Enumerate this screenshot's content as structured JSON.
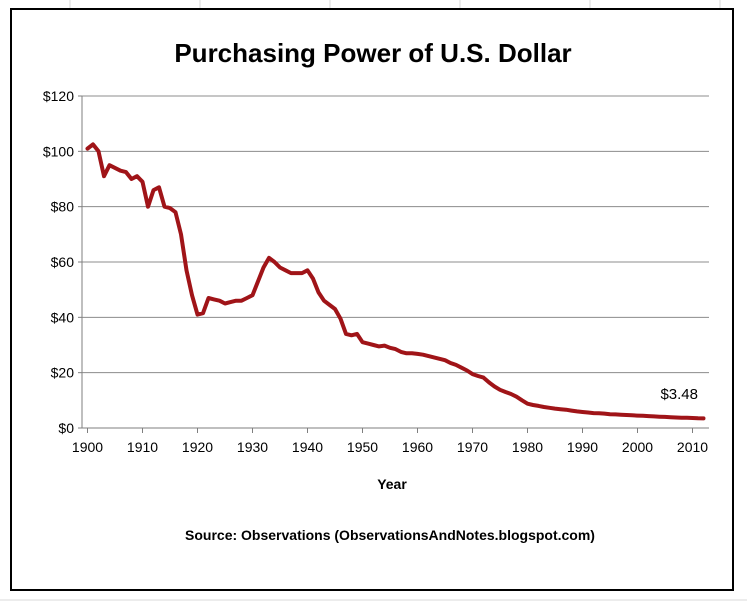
{
  "chart_data": {
    "type": "line",
    "title": "Purchasing Power of U.S. Dollar",
    "xlabel": "Year",
    "ylabel": "",
    "source_note": "Source: Observations (ObservationsAndNotes.blogspot.com)",
    "xlim": [
      1899,
      2013
    ],
    "ylim": [
      0,
      120
    ],
    "x_ticks": [
      1900,
      1910,
      1920,
      1930,
      1940,
      1950,
      1960,
      1970,
      1980,
      1990,
      2000,
      2010
    ],
    "y_ticks": [
      0,
      20,
      40,
      60,
      80,
      100,
      120
    ],
    "y_tick_labels": [
      "$0",
      "$20",
      "$40",
      "$60",
      "$80",
      "$100",
      "$120"
    ],
    "grid": true,
    "legend": "none",
    "line_color": "#a01418",
    "end_label": "$3.48",
    "series": [
      {
        "x": [
          1900,
          1901,
          1902,
          1903,
          1904,
          1905,
          1906,
          1907,
          1908,
          1909,
          1910,
          1911,
          1912,
          1913,
          1914,
          1915,
          1916,
          1917,
          1918,
          1919,
          1920,
          1921,
          1922,
          1923,
          1924,
          1925,
          1926,
          1927,
          1928,
          1929,
          1930,
          1931,
          1932,
          1933,
          1934,
          1935,
          1936,
          1937,
          1938,
          1939,
          1940,
          1941,
          1942,
          1943,
          1944,
          1945,
          1946,
          1947,
          1948,
          1949,
          1950,
          1951,
          1952,
          1953,
          1954,
          1955,
          1956,
          1957,
          1958,
          1959,
          1960,
          1961,
          1962,
          1963,
          1964,
          1965,
          1966,
          1967,
          1968,
          1969,
          1970,
          1971,
          1972,
          1973,
          1974,
          1975,
          1976,
          1977,
          1978,
          1979,
          1980,
          1981,
          1982,
          1983,
          1984,
          1985,
          1986,
          1987,
          1988,
          1989,
          1990,
          1991,
          1992,
          1993,
          1994,
          1995,
          1996,
          1997,
          1998,
          1999,
          2000,
          2001,
          2002,
          2003,
          2004,
          2005,
          2006,
          2007,
          2008,
          2009,
          2010,
          2011,
          2012
        ],
        "values": [
          101,
          102.5,
          100,
          91,
          95,
          94,
          93,
          92.5,
          90,
          91,
          89,
          80,
          86,
          87,
          80,
          79.5,
          78,
          70,
          57,
          48,
          41,
          41.5,
          47,
          46.5,
          46,
          45,
          45.5,
          46,
          46,
          47,
          48,
          53,
          58,
          61.5,
          60,
          58,
          57,
          56,
          56,
          56,
          57,
          54,
          49,
          46,
          44.5,
          43,
          39.5,
          34,
          33.5,
          34,
          31,
          30.5,
          30,
          29.5,
          29.8,
          29,
          28.5,
          27.5,
          27,
          27,
          26.8,
          26.5,
          26,
          25.5,
          25,
          24.5,
          23.5,
          22.8,
          21.8,
          20.8,
          19.5,
          18.8,
          18.2,
          16.5,
          15,
          13.8,
          13,
          12.3,
          11.3,
          10,
          8.8,
          8.3,
          8,
          7.6,
          7.3,
          7,
          6.8,
          6.6,
          6.3,
          6,
          5.8,
          5.6,
          5.4,
          5.3,
          5.2,
          5,
          4.9,
          4.8,
          4.7,
          4.6,
          4.5,
          4.4,
          4.3,
          4.2,
          4.1,
          4,
          3.9,
          3.8,
          3.7,
          3.7,
          3.6,
          3.5,
          3.48
        ]
      }
    ]
  }
}
